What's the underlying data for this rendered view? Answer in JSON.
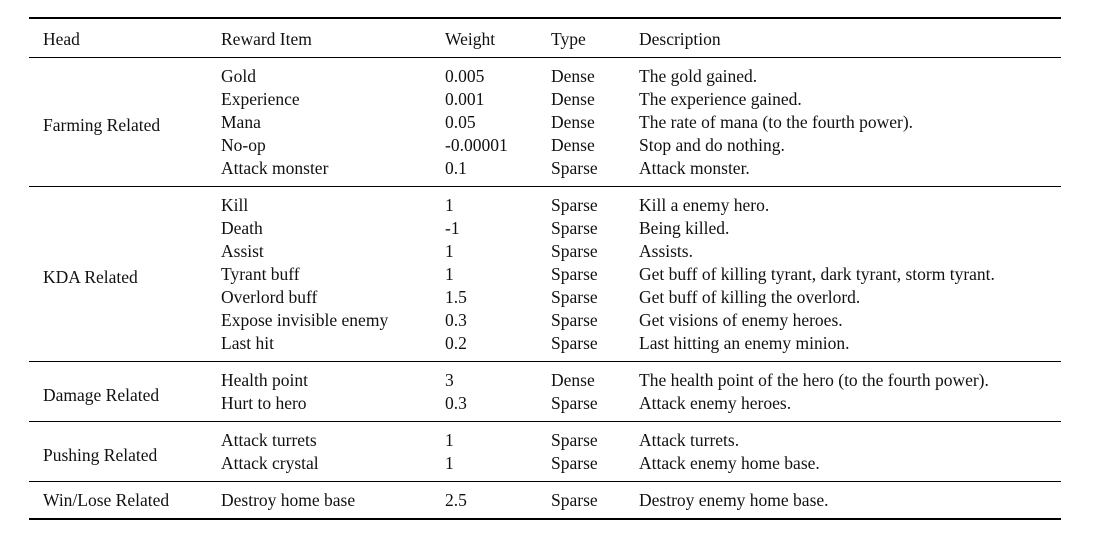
{
  "headers": {
    "head": "Head",
    "item": "Reward Item",
    "weight": "Weight",
    "type": "Type",
    "description": "Description"
  },
  "groups": [
    {
      "head": "Farming Related",
      "rows": [
        {
          "item": "Gold",
          "weight": "0.005",
          "type": "Dense",
          "description": "The gold gained."
        },
        {
          "item": "Experience",
          "weight": "0.001",
          "type": "Dense",
          "description": "The experience gained."
        },
        {
          "item": "Mana",
          "weight": "0.05",
          "type": "Dense",
          "description": "The rate of mana (to the fourth power)."
        },
        {
          "item": "No-op",
          "weight": "-0.00001",
          "type": "Dense",
          "description": "Stop and do nothing."
        },
        {
          "item": "Attack monster",
          "weight": "0.1",
          "type": "Sparse",
          "description": "Attack monster."
        }
      ]
    },
    {
      "head": "KDA Related",
      "rows": [
        {
          "item": "Kill",
          "weight": "1",
          "type": "Sparse",
          "description": "Kill a enemy hero."
        },
        {
          "item": "Death",
          "weight": "-1",
          "type": "Sparse",
          "description": "Being killed."
        },
        {
          "item": "Assist",
          "weight": "1",
          "type": "Sparse",
          "description": "Assists."
        },
        {
          "item": "Tyrant buff",
          "weight": "1",
          "type": "Sparse",
          "description": "Get buff of killing tyrant, dark tyrant, storm tyrant."
        },
        {
          "item": "Overlord buff",
          "weight": "1.5",
          "type": "Sparse",
          "description": "Get buff of killing the overlord."
        },
        {
          "item": "Expose invisible enemy",
          "weight": "0.3",
          "type": "Sparse",
          "description": "Get visions of enemy heroes."
        },
        {
          "item": "Last hit",
          "weight": "0.2",
          "type": "Sparse",
          "description": "Last hitting an enemy minion."
        }
      ]
    },
    {
      "head": "Damage Related",
      "rows": [
        {
          "item": "Health point",
          "weight": "3",
          "type": "Dense",
          "description": "The health point of the hero (to the fourth power)."
        },
        {
          "item": "Hurt to hero",
          "weight": "0.3",
          "type": "Sparse",
          "description": "Attack enemy heroes."
        }
      ]
    },
    {
      "head": "Pushing Related",
      "rows": [
        {
          "item": "Attack turrets",
          "weight": "1",
          "type": "Sparse",
          "description": "Attack turrets."
        },
        {
          "item": "Attack crystal",
          "weight": "1",
          "type": "Sparse",
          "description": "Attack enemy home base."
        }
      ]
    },
    {
      "head": "Win/Lose Related",
      "rows": [
        {
          "item": "Destroy home base",
          "weight": "2.5",
          "type": "Sparse",
          "description": "Destroy enemy home base."
        }
      ]
    }
  ]
}
